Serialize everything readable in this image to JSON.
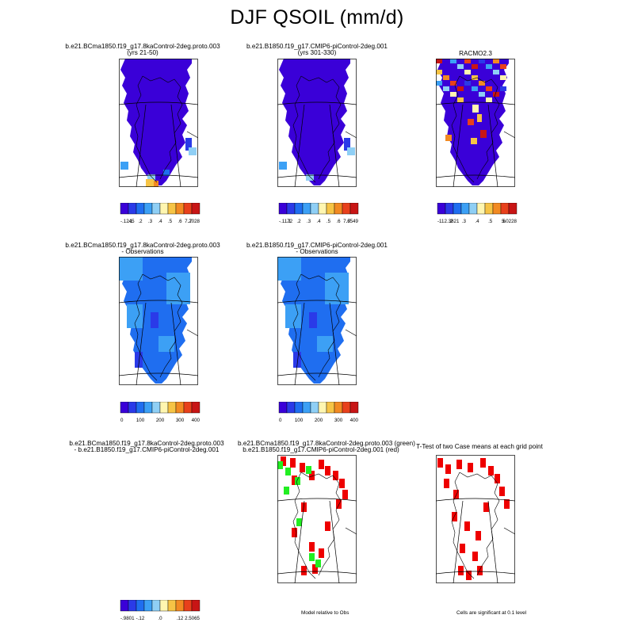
{
  "title": "DJF QSOIL (mm/d)",
  "chart_data": {
    "type": "map-panel-grid",
    "panels": [
      {
        "id": "p1",
        "title_lines": [
          "b.e21.BCma1850.f19_g17.8kaControl-2deg.proto.003",
          "(yrs 21-50)"
        ],
        "style": "model",
        "colorbar": {
          "labels": [
            "-.1245",
            ".1",
            ".2",
            ".3",
            ".4",
            ".5",
            ".6",
            ".7",
            "7.2028"
          ],
          "colors": [
            "#3a00d8",
            "#2a3ae8",
            "#1f6ef0",
            "#3ca0f5",
            "#8fcff5",
            "#fff6b0",
            "#f6c445",
            "#f28a22",
            "#e8401b",
            "#c81515"
          ]
        }
      },
      {
        "id": "p2",
        "title_lines": [
          "b.e21.B1850.f19_g17.CMIP6-piControl-2deg.001",
          "(yrs 301-330)"
        ],
        "style": "model",
        "colorbar": {
          "labels": [
            "-.1172",
            ".1",
            ".2",
            ".3",
            ".4",
            ".5",
            ".6",
            ".7",
            "7.6549"
          ],
          "colors": [
            "#3a00d8",
            "#2a3ae8",
            "#1f6ef0",
            "#3ca0f5",
            "#8fcff5",
            "#fff6b0",
            "#f6c445",
            "#f28a22",
            "#e8401b",
            "#c81515"
          ]
        }
      },
      {
        "id": "p3",
        "title_lines": [
          "RACMO2.3"
        ],
        "style": "obs",
        "colorbar": {
          "labels": [
            "-112.3821",
            ".2",
            ".3",
            ".4",
            ".5",
            ".6",
            "5.0228"
          ],
          "colors": [
            "#3a00d8",
            "#2a3ae8",
            "#1f6ef0",
            "#3ca0f5",
            "#8fcff5",
            "#fff6b0",
            "#f6c445",
            "#f28a22",
            "#e8401b",
            "#c81515"
          ]
        }
      },
      {
        "id": "p4",
        "title_lines": [
          "b.e21.BCma1850.f19_g17.8kaControl-2deg.proto.003",
          "- Observations"
        ],
        "style": "diffobs",
        "colorbar": {
          "labels": [
            "0",
            "100",
            "200",
            "300",
            "400"
          ],
          "colors": [
            "#3a00d8",
            "#2a3ae8",
            "#1f6ef0",
            "#3ca0f5",
            "#8fcff5",
            "#fff6b0",
            "#f6c445",
            "#f28a22",
            "#e8401b",
            "#c81515"
          ]
        }
      },
      {
        "id": "p5",
        "title_lines": [
          "b.e21.B1850.f19_g17.CMIP6-piControl-2deg.001",
          "- Observations"
        ],
        "style": "diffobs",
        "colorbar": {
          "labels": [
            "0",
            "100",
            "200",
            "300",
            "400"
          ],
          "colors": [
            "#3a00d8",
            "#2a3ae8",
            "#1f6ef0",
            "#3ca0f5",
            "#8fcff5",
            "#fff6b0",
            "#f6c445",
            "#f28a22",
            "#e8401b",
            "#c81515"
          ]
        }
      },
      {
        "id": "p6",
        "title_lines": [
          "b.e21.BCma1850.f19_g17.8kaControl-2deg.proto.003",
          "- b.e21.B1850.f19_g17.CMIP6-piControl-2deg.001"
        ],
        "style": "diff",
        "colorbar": {
          "labels": [
            "-.9801",
            "-.12",
            ".0",
            ".12",
            "2.5065"
          ],
          "colors": [
            "#3a00d8",
            "#2a3ae8",
            "#1f6ef0",
            "#3ca0f5",
            "#8fcff5",
            "#fff6b0",
            "#f6c445",
            "#f28a22",
            "#e8401b",
            "#c81515"
          ]
        }
      },
      {
        "id": "p7",
        "title_lines": [
          "b.e21.BCma1850.f19_g17.8kaControl-2deg.proto.003 (green)",
          "b.e21.B1850.f19_g17.CMIP6-piControl-2deg.001 (red)"
        ],
        "style": "rg",
        "note": "Model relative to Obs"
      },
      {
        "id": "p8",
        "title_lines": [
          "T-Test of two Case means at each grid point"
        ],
        "style": "ttest",
        "note": "Cells are significant at 0.1 level"
      }
    ]
  }
}
